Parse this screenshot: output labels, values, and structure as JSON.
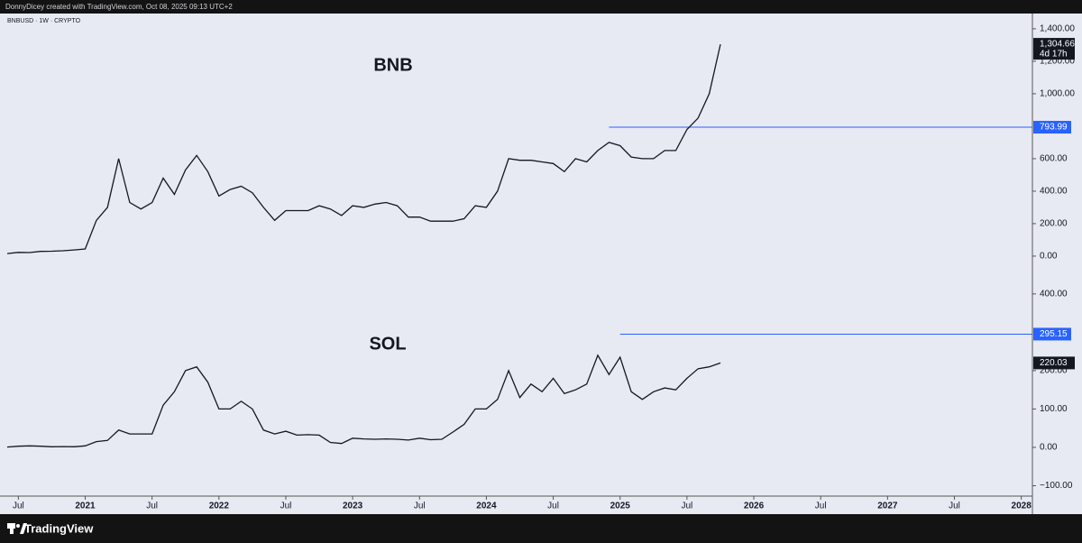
{
  "header": {
    "credit": "DonnyDicey created with TradingView.com, Oct 08, 2025 09:13 UTC+2",
    "symbol": "BNBUSD · 1W · CRYPTO"
  },
  "footer": {
    "brand": "TradingView"
  },
  "chart_data": [
    {
      "type": "line",
      "title": "BNB",
      "color": "#131722",
      "x": [
        "2020-06",
        "2020-07",
        "2020-08",
        "2020-09",
        "2020-10",
        "2020-11",
        "2020-12",
        "2021-01",
        "2021-02",
        "2021-03",
        "2021-04",
        "2021-05",
        "2021-06",
        "2021-07",
        "2021-08",
        "2021-09",
        "2021-10",
        "2021-11",
        "2021-12",
        "2022-01",
        "2022-02",
        "2022-03",
        "2022-04",
        "2022-05",
        "2022-06",
        "2022-07",
        "2022-08",
        "2022-09",
        "2022-10",
        "2022-11",
        "2022-12",
        "2023-01",
        "2023-02",
        "2023-03",
        "2023-04",
        "2023-05",
        "2023-06",
        "2023-07",
        "2023-08",
        "2023-09",
        "2023-10",
        "2023-11",
        "2023-12",
        "2024-01",
        "2024-02",
        "2024-03",
        "2024-04",
        "2024-05",
        "2024-06",
        "2024-07",
        "2024-08",
        "2024-09",
        "2024-10",
        "2024-11",
        "2024-12",
        "2025-01",
        "2025-02",
        "2025-03",
        "2025-04",
        "2025-05",
        "2025-06",
        "2025-07",
        "2025-08",
        "2025-09",
        "2025-10"
      ],
      "values": [
        16,
        23,
        22,
        29,
        30,
        33,
        38,
        44,
        220,
        300,
        600,
        330,
        290,
        330,
        480,
        380,
        530,
        620,
        520,
        370,
        410,
        430,
        390,
        300,
        220,
        280,
        280,
        280,
        310,
        290,
        250,
        310,
        300,
        320,
        330,
        310,
        240,
        240,
        215,
        215,
        215,
        230,
        310,
        300,
        400,
        600,
        590,
        590,
        580,
        570,
        520,
        600,
        580,
        650,
        700,
        680,
        610,
        600,
        600,
        650,
        650,
        780,
        850,
        1000,
        1304.66
      ],
      "last_price": {
        "value": 1304.66,
        "label": "1,304.66"
      },
      "countdown": "4d 17h",
      "levels": [
        {
          "value": 793.99,
          "from": "2024-12",
          "color": "#2962ff"
        }
      ],
      "xlim": [
        "2020-06",
        "2028-02"
      ],
      "ylim": [
        -117,
        1494
      ],
      "yticks": [
        {
          "value": 0,
          "label": "0.00"
        },
        {
          "value": 200,
          "label": "200.00"
        },
        {
          "value": 400,
          "label": "400.00"
        },
        {
          "value": 600,
          "label": "600.00"
        },
        {
          "value": 1000,
          "label": "1,000.00"
        },
        {
          "value": 1200,
          "label": "1,200.00"
        },
        {
          "value": 1400,
          "label": "1,400.00"
        }
      ]
    },
    {
      "type": "line",
      "title": "SOL",
      "color": "#131722",
      "x": [
        "2020-06",
        "2020-07",
        "2020-08",
        "2020-09",
        "2020-10",
        "2020-11",
        "2020-12",
        "2021-01",
        "2021-02",
        "2021-03",
        "2021-04",
        "2021-05",
        "2021-06",
        "2021-07",
        "2021-08",
        "2021-09",
        "2021-10",
        "2021-11",
        "2021-12",
        "2022-01",
        "2022-02",
        "2022-03",
        "2022-04",
        "2022-05",
        "2022-06",
        "2022-07",
        "2022-08",
        "2022-09",
        "2022-10",
        "2022-11",
        "2022-12",
        "2023-01",
        "2023-02",
        "2023-03",
        "2023-04",
        "2023-05",
        "2023-06",
        "2023-07",
        "2023-08",
        "2023-09",
        "2023-10",
        "2023-11",
        "2023-12",
        "2024-01",
        "2024-02",
        "2024-03",
        "2024-04",
        "2024-05",
        "2024-06",
        "2024-07",
        "2024-08",
        "2024-09",
        "2024-10",
        "2024-11",
        "2024-12",
        "2025-01",
        "2025-02",
        "2025-03",
        "2025-04",
        "2025-05",
        "2025-06",
        "2025-07",
        "2025-08",
        "2025-09",
        "2025-10"
      ],
      "values": [
        1,
        3,
        4,
        3,
        1.5,
        2,
        1.5,
        4,
        15,
        18,
        45,
        35,
        35,
        35,
        110,
        145,
        200,
        210,
        170,
        100,
        100,
        120,
        100,
        45,
        35,
        42,
        32,
        33,
        32,
        13,
        10,
        24,
        22,
        21,
        22,
        21,
        19,
        24,
        20,
        21,
        40,
        60,
        100,
        100,
        125,
        200,
        130,
        165,
        145,
        180,
        140,
        150,
        165,
        240,
        190,
        235,
        145,
        125,
        145,
        155,
        150,
        180,
        205,
        210,
        220.03
      ],
      "last_price": 220.03,
      "levels": [
        {
          "value": 295.15,
          "from": "2025-01",
          "color": "#2962ff"
        }
      ],
      "xlim": [
        "2020-06",
        "2028-02"
      ],
      "ylim": [
        -127,
        449
      ],
      "yticks": [
        {
          "value": -100,
          "label": "−100.00"
        },
        {
          "value": 0,
          "label": "0.00"
        },
        {
          "value": 100,
          "label": "100.00"
        },
        {
          "value": 200,
          "label": "200.00"
        },
        {
          "value": 400,
          "label": "400.00"
        }
      ],
      "xticks": [
        {
          "value": "2020-07",
          "label": "Jul"
        },
        {
          "value": "2021-01",
          "label": "2021"
        },
        {
          "value": "2021-07",
          "label": "Jul"
        },
        {
          "value": "2022-01",
          "label": "2022"
        },
        {
          "value": "2022-07",
          "label": "Jul"
        },
        {
          "value": "2023-01",
          "label": "2023"
        },
        {
          "value": "2023-07",
          "label": "Jul"
        },
        {
          "value": "2024-01",
          "label": "2024"
        },
        {
          "value": "2024-07",
          "label": "Jul"
        },
        {
          "value": "2025-01",
          "label": "2025"
        },
        {
          "value": "2025-07",
          "label": "Jul"
        },
        {
          "value": "2026-01",
          "label": "2026"
        },
        {
          "value": "2026-07",
          "label": "Jul"
        },
        {
          "value": "2027-01",
          "label": "2027"
        },
        {
          "value": "2027-07",
          "label": "Jul"
        },
        {
          "value": "2028-01",
          "label": "2028"
        }
      ]
    }
  ]
}
